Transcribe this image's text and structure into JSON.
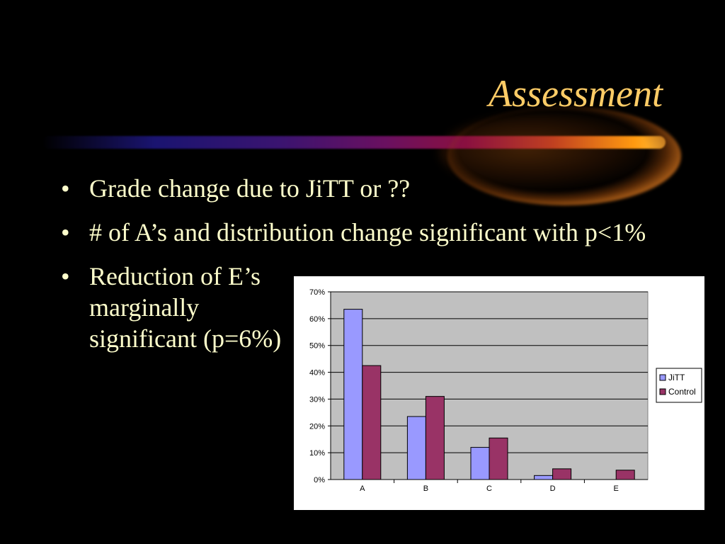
{
  "slide": {
    "title": "Assessment",
    "bullet_symbol": "•",
    "bullets": [
      "Grade change due to JiTT or ??",
      "# of A’s and distribution change significant with p<1%",
      "Reduction of E’s marginally significant (p=6%)"
    ]
  },
  "colors": {
    "title": "#ffcc66",
    "text": "#ffffcc",
    "background": "#000000",
    "plot_area": "#c0c0c0",
    "jitt": "#9999ff",
    "control": "#993366"
  },
  "chart_data": {
    "type": "bar",
    "categories": [
      "A",
      "B",
      "C",
      "D",
      "E"
    ],
    "series": [
      {
        "name": "JiTT",
        "values": [
          63.5,
          23.5,
          12,
          1.5,
          0
        ],
        "color": "#9999ff"
      },
      {
        "name": "Control",
        "values": [
          42.5,
          31,
          15.5,
          4,
          3.5
        ],
        "color": "#993366"
      }
    ],
    "ylim": [
      0,
      70
    ],
    "y_ticks": [
      0,
      10,
      20,
      30,
      40,
      50,
      60,
      70
    ],
    "y_tick_labels": [
      "0%",
      "10%",
      "20%",
      "30%",
      "40%",
      "50%",
      "60%",
      "70%"
    ],
    "grid": true,
    "legend_position": "right",
    "title": "",
    "xlabel": "",
    "ylabel": ""
  }
}
